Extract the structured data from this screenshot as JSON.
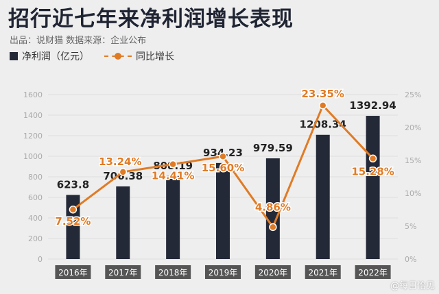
{
  "title": "招行近七年来净利润增长表现",
  "subtitle": "出品：说财猫  数据来源：企业公布",
  "watermark": "@每日怡见",
  "colors": {
    "bar": "#242938",
    "line": "#e07b25"
  },
  "chart_data": {
    "type": "bar",
    "categories": [
      "2016年",
      "2017年",
      "2018年",
      "2019年",
      "2020年",
      "2021年",
      "2022年"
    ],
    "series": [
      {
        "name": "净利润（亿元）",
        "type": "bar",
        "axis": "left",
        "values": [
          623.8,
          706.38,
          808.19,
          934.23,
          979.59,
          1208.34,
          1392.94
        ],
        "labels": [
          "623.8",
          "706.38",
          "808.19",
          "934.23",
          "979.59",
          "1208.34",
          "1392.94"
        ]
      },
      {
        "name": "同比增长",
        "type": "line",
        "axis": "right",
        "values": [
          7.52,
          13.24,
          14.41,
          15.6,
          4.86,
          23.35,
          15.28
        ],
        "labels": [
          "7.52%",
          "13.24%",
          "14.41%",
          "15.60%",
          "4.86%",
          "23.35%",
          "15.28%"
        ]
      }
    ],
    "y_left": {
      "min": 0,
      "max": 1600,
      "step": 200
    },
    "y_right": {
      "min": 0,
      "max": 25,
      "step": 5,
      "tick_labels": [
        "0%",
        "5%",
        "10%",
        "15%",
        "20%",
        "25%"
      ]
    },
    "grid": true,
    "legend": "top-left"
  }
}
